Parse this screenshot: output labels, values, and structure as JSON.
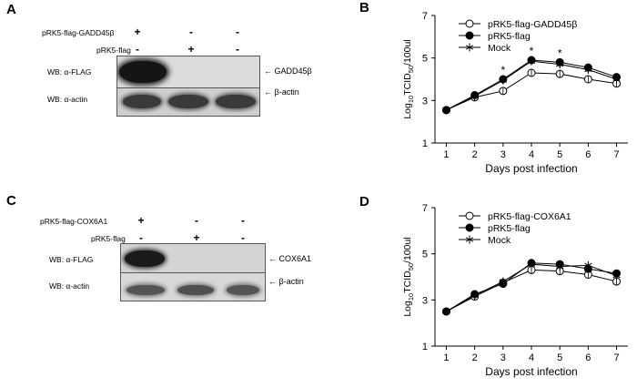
{
  "panels": {
    "A": {
      "letter": "A",
      "rows": [
        {
          "label": "pRK5-flag-GADD45β",
          "signs": [
            "+",
            "-",
            "-"
          ]
        },
        {
          "label": "pRK5-flag",
          "signs": [
            "-",
            "+",
            "-"
          ]
        }
      ],
      "blot_flag_label": "WB: α-FLAG",
      "blot_actin_label": "WB: α-actin",
      "flag_target": "GADD45β",
      "actin_target": "β-actin"
    },
    "C": {
      "letter": "C",
      "rows": [
        {
          "label": "pRK5-flag-COX6A1",
          "signs": [
            "+",
            "-",
            "-"
          ]
        },
        {
          "label": "pRK5-flag",
          "signs": [
            "-",
            "+",
            "-"
          ]
        }
      ],
      "blot_flag_label": "WB: α-FLAG",
      "blot_actin_label": "WB: α-actin",
      "flag_target": "COX6A1",
      "actin_target": "β-actin"
    },
    "B": {
      "letter": "B"
    },
    "D": {
      "letter": "D"
    }
  },
  "chart_data": [
    {
      "panel": "B",
      "type": "line",
      "title": "",
      "xlabel": "Days post infection",
      "ylabel_base": "Log",
      "ylabel_sub1": "10",
      "ylabel_mid": "TCID",
      "ylabel_sub2": "50",
      "ylabel_end": "/100ul",
      "x": [
        1,
        2,
        3,
        4,
        5,
        6,
        7
      ],
      "xlim": [
        0.6,
        7.4
      ],
      "ylim": [
        1,
        7
      ],
      "yticks": [
        1,
        3,
        5,
        7
      ],
      "legend_position": "top-left",
      "series": [
        {
          "name": "pRK5-flag-GADD45β",
          "marker": "open-circle",
          "values": [
            2.55,
            3.15,
            3.45,
            4.3,
            4.25,
            4.0,
            3.8
          ]
        },
        {
          "name": "pRK5-flag",
          "marker": "filled-circle",
          "values": [
            2.55,
            3.25,
            4.0,
            4.9,
            4.8,
            4.55,
            4.1
          ]
        },
        {
          "name": "Mock",
          "marker": "star",
          "values": [
            2.55,
            3.2,
            3.95,
            4.85,
            4.7,
            4.45,
            4.0
          ]
        }
      ],
      "significance": [
        {
          "x": 3,
          "label": "*"
        },
        {
          "x": 4,
          "label": "*"
        },
        {
          "x": 5,
          "label": "*"
        }
      ]
    },
    {
      "panel": "D",
      "type": "line",
      "title": "",
      "xlabel": "Days post infection",
      "ylabel_base": "Log",
      "ylabel_sub1": "10",
      "ylabel_mid": "TCID",
      "ylabel_sub2": "50",
      "ylabel_end": "/100ul",
      "x": [
        1,
        2,
        3,
        4,
        5,
        6,
        7
      ],
      "xlim": [
        0.6,
        7.4
      ],
      "ylim": [
        1,
        7
      ],
      "yticks": [
        1,
        3,
        5,
        7
      ],
      "legend_position": "top-left",
      "series": [
        {
          "name": "pRK5-flag-COX6A1",
          "marker": "open-circle",
          "values": [
            2.5,
            3.15,
            3.75,
            4.3,
            4.25,
            4.1,
            3.8
          ]
        },
        {
          "name": "pRK5-flag",
          "marker": "filled-circle",
          "values": [
            2.5,
            3.25,
            3.7,
            4.6,
            4.55,
            4.35,
            4.15
          ]
        },
        {
          "name": "Mock",
          "marker": "star",
          "values": [
            2.5,
            3.2,
            3.8,
            4.55,
            4.45,
            4.5,
            4.05
          ]
        }
      ],
      "significance": []
    }
  ]
}
